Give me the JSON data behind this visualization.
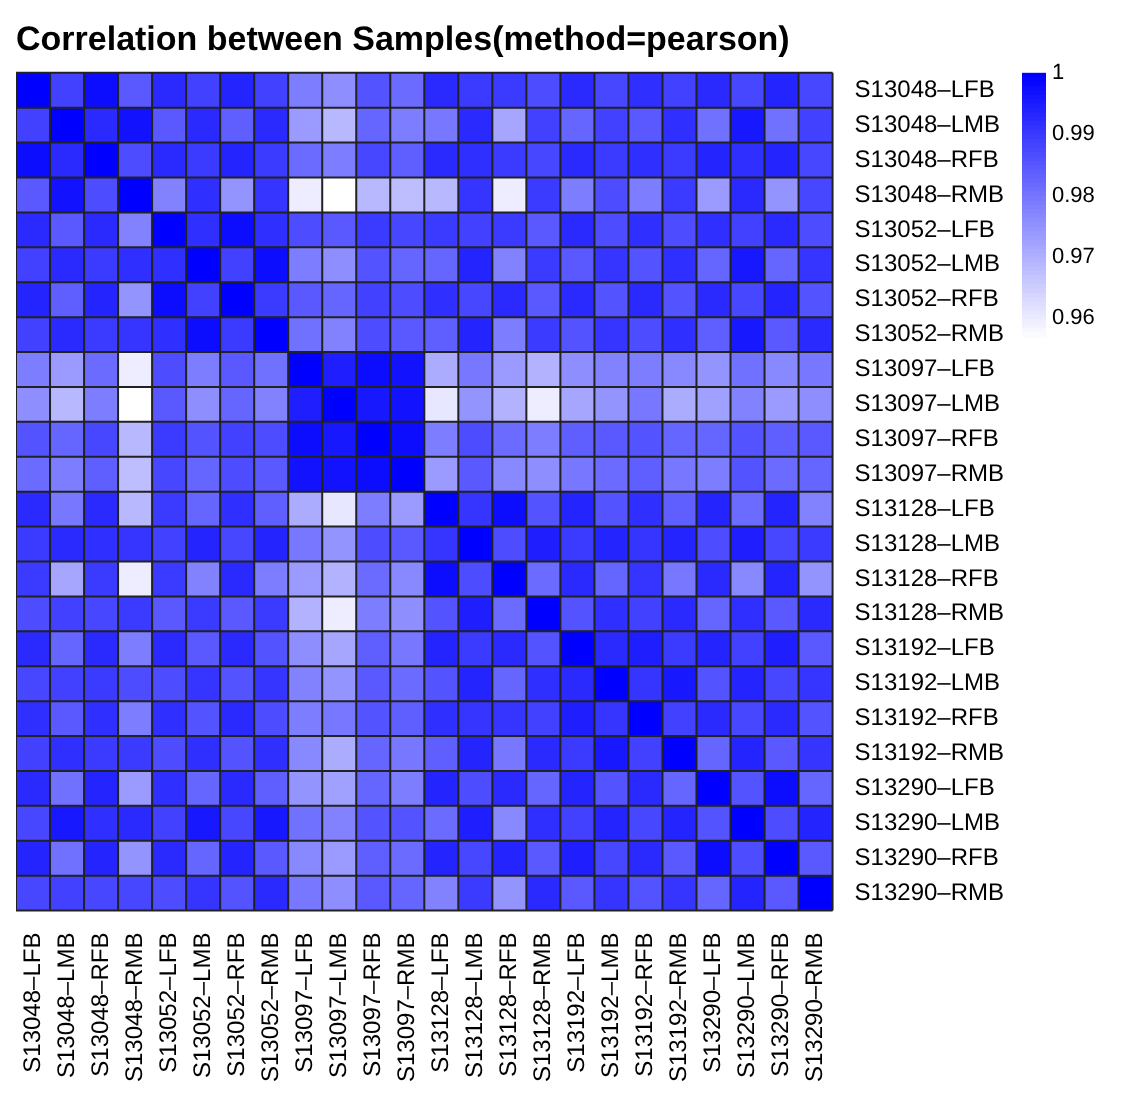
{
  "chart_data": {
    "type": "heatmap",
    "title": "Correlation between Samples(method=pearson)",
    "categories": [
      "S13048–LFB",
      "S13048–LMB",
      "S13048–RFB",
      "S13048–RMB",
      "S13052–LFB",
      "S13052–LMB",
      "S13052–RFB",
      "S13052–RMB",
      "S13097–LFB",
      "S13097–LMB",
      "S13097–RFB",
      "S13097–RMB",
      "S13128–LFB",
      "S13128–LMB",
      "S13128–RFB",
      "S13128–RMB",
      "S13192–LFB",
      "S13192–LMB",
      "S13192–RFB",
      "S13192–RMB",
      "S13290–LFB",
      "S13290–LMB",
      "S13290–RFB",
      "S13290–RMB"
    ],
    "y_categories": [
      "S13048–LFB",
      "S13048–LMB",
      "S13048–RFB",
      "S13048–RMB",
      "S13052–LFB",
      "S13052–LMB",
      "S13052–RFB",
      "S13052–RMB",
      "S13097–LFB",
      "S13097–LMB",
      "S13097–RFB",
      "S13097–RMB",
      "S13128–LFB",
      "S13128–LMB",
      "S13128–RFB",
      "S13128–RMB",
      "S13192–LFB",
      "S13192–LMB",
      "S13192–RFB",
      "S13192–RMB",
      "S13290–LFB",
      "S13290–LMB",
      "S13290–RFB",
      "S13290–RMB"
    ],
    "color": "#0000ff",
    "clim": [
      0.957,
      1
    ],
    "cticks": [
      {
        "value": 1,
        "label": "1"
      },
      0.99,
      0.98,
      0.97,
      0.96
    ],
    "cells": [
      [
        1,
        0.989,
        0.998,
        0.985,
        0.993,
        0.989,
        0.994,
        0.989,
        0.979,
        0.976,
        0.986,
        0.982,
        0.993,
        0.99,
        0.99,
        0.987,
        0.993,
        0.988,
        0.992,
        0.989,
        0.993,
        0.988,
        0.994,
        0.988
      ],
      [
        0.989,
        1,
        0.993,
        0.997,
        0.985,
        0.993,
        0.984,
        0.993,
        0.974,
        0.969,
        0.983,
        0.979,
        0.98,
        0.993,
        0.972,
        0.989,
        0.983,
        0.989,
        0.985,
        0.992,
        0.981,
        0.996,
        0.981,
        0.989
      ],
      [
        0.998,
        0.993,
        1,
        0.987,
        0.993,
        0.99,
        0.994,
        0.99,
        0.982,
        0.979,
        0.988,
        0.984,
        0.993,
        0.992,
        0.99,
        0.988,
        0.993,
        0.99,
        0.992,
        0.99,
        0.994,
        0.992,
        0.994,
        0.988
      ],
      [
        0.985,
        0.997,
        0.987,
        1,
        0.978,
        0.992,
        0.975,
        0.991,
        0.96,
        0.957,
        0.969,
        0.968,
        0.969,
        0.991,
        0.96,
        0.99,
        0.979,
        0.987,
        0.979,
        0.99,
        0.974,
        0.993,
        0.975,
        0.988
      ],
      [
        0.993,
        0.985,
        0.993,
        0.978,
        1,
        0.992,
        0.998,
        0.992,
        0.987,
        0.985,
        0.99,
        0.988,
        0.99,
        0.989,
        0.99,
        0.985,
        0.993,
        0.987,
        0.992,
        0.987,
        0.992,
        0.989,
        0.993,
        0.987
      ],
      [
        0.989,
        0.993,
        0.99,
        0.992,
        0.992,
        1,
        0.989,
        0.998,
        0.979,
        0.976,
        0.986,
        0.983,
        0.983,
        0.994,
        0.978,
        0.99,
        0.985,
        0.991,
        0.986,
        0.992,
        0.983,
        0.996,
        0.983,
        0.991
      ],
      [
        0.994,
        0.984,
        0.994,
        0.975,
        0.998,
        0.989,
        1,
        0.99,
        0.985,
        0.983,
        0.989,
        0.987,
        0.992,
        0.988,
        0.993,
        0.985,
        0.993,
        0.986,
        0.993,
        0.986,
        0.993,
        0.988,
        0.994,
        0.986
      ],
      [
        0.989,
        0.993,
        0.99,
        0.991,
        0.992,
        0.998,
        0.99,
        1,
        0.981,
        0.978,
        0.987,
        0.985,
        0.984,
        0.994,
        0.979,
        0.99,
        0.986,
        0.991,
        0.987,
        0.992,
        0.984,
        0.996,
        0.985,
        0.993
      ],
      [
        0.979,
        0.974,
        0.982,
        0.96,
        0.987,
        0.979,
        0.985,
        0.981,
        1,
        0.995,
        0.998,
        0.997,
        0.971,
        0.98,
        0.974,
        0.97,
        0.976,
        0.978,
        0.979,
        0.977,
        0.975,
        0.981,
        0.977,
        0.98
      ],
      [
        0.976,
        0.969,
        0.979,
        0.957,
        0.985,
        0.976,
        0.983,
        0.978,
        0.995,
        1,
        0.996,
        0.997,
        0.961,
        0.975,
        0.97,
        0.96,
        0.972,
        0.975,
        0.98,
        0.971,
        0.973,
        0.978,
        0.974,
        0.976
      ],
      [
        0.986,
        0.983,
        0.988,
        0.969,
        0.99,
        0.986,
        0.989,
        0.987,
        0.998,
        0.996,
        1,
        0.998,
        0.979,
        0.987,
        0.982,
        0.979,
        0.984,
        0.985,
        0.986,
        0.983,
        0.983,
        0.986,
        0.984,
        0.985
      ],
      [
        0.982,
        0.979,
        0.984,
        0.968,
        0.988,
        0.983,
        0.987,
        0.985,
        0.997,
        0.997,
        0.998,
        1,
        0.974,
        0.985,
        0.977,
        0.976,
        0.98,
        0.982,
        0.984,
        0.98,
        0.979,
        0.986,
        0.982,
        0.983
      ],
      [
        0.993,
        0.98,
        0.993,
        0.969,
        0.99,
        0.983,
        0.992,
        0.984,
        0.971,
        0.961,
        0.979,
        0.974,
        1,
        0.991,
        0.998,
        0.986,
        0.994,
        0.986,
        0.992,
        0.984,
        0.994,
        0.982,
        0.994,
        0.978
      ],
      [
        0.99,
        0.993,
        0.992,
        0.991,
        0.989,
        0.994,
        0.988,
        0.994,
        0.98,
        0.975,
        0.987,
        0.985,
        0.991,
        1,
        0.987,
        0.995,
        0.99,
        0.994,
        0.991,
        0.994,
        0.987,
        0.995,
        0.988,
        0.99
      ],
      [
        0.99,
        0.972,
        0.99,
        0.96,
        0.99,
        0.978,
        0.993,
        0.979,
        0.974,
        0.97,
        0.982,
        0.977,
        0.998,
        0.987,
        1,
        0.982,
        0.993,
        0.983,
        0.991,
        0.98,
        0.993,
        0.977,
        0.994,
        0.975
      ],
      [
        0.987,
        0.989,
        0.988,
        0.99,
        0.985,
        0.99,
        0.985,
        0.99,
        0.97,
        0.96,
        0.979,
        0.976,
        0.986,
        0.995,
        0.982,
        1,
        0.986,
        0.992,
        0.989,
        0.993,
        0.983,
        0.992,
        0.985,
        0.993
      ],
      [
        0.993,
        0.983,
        0.993,
        0.979,
        0.993,
        0.985,
        0.993,
        0.986,
        0.976,
        0.972,
        0.984,
        0.98,
        0.994,
        0.99,
        0.993,
        0.986,
        1,
        0.993,
        0.995,
        0.99,
        0.994,
        0.989,
        0.995,
        0.985
      ],
      [
        0.988,
        0.989,
        0.99,
        0.987,
        0.987,
        0.991,
        0.986,
        0.991,
        0.978,
        0.975,
        0.985,
        0.982,
        0.986,
        0.994,
        0.983,
        0.992,
        0.993,
        1,
        0.991,
        0.996,
        0.986,
        0.994,
        0.988,
        0.991
      ],
      [
        0.992,
        0.985,
        0.992,
        0.979,
        0.992,
        0.986,
        0.993,
        0.987,
        0.979,
        0.98,
        0.986,
        0.984,
        0.992,
        0.991,
        0.991,
        0.989,
        0.995,
        0.991,
        1,
        0.989,
        0.993,
        0.988,
        0.993,
        0.986
      ],
      [
        0.989,
        0.992,
        0.99,
        0.99,
        0.987,
        0.992,
        0.986,
        0.992,
        0.977,
        0.971,
        0.983,
        0.98,
        0.984,
        0.994,
        0.98,
        0.993,
        0.99,
        0.996,
        0.989,
        1,
        0.983,
        0.994,
        0.985,
        0.991
      ],
      [
        0.993,
        0.981,
        0.994,
        0.974,
        0.992,
        0.983,
        0.993,
        0.984,
        0.975,
        0.973,
        0.983,
        0.979,
        0.994,
        0.987,
        0.993,
        0.983,
        0.994,
        0.986,
        0.993,
        0.983,
        1,
        0.986,
        0.998,
        0.983
      ],
      [
        0.988,
        0.996,
        0.992,
        0.993,
        0.989,
        0.996,
        0.988,
        0.996,
        0.981,
        0.978,
        0.986,
        0.986,
        0.982,
        0.995,
        0.977,
        0.992,
        0.989,
        0.994,
        0.988,
        0.994,
        0.986,
        1,
        0.987,
        0.994
      ],
      [
        0.994,
        0.981,
        0.994,
        0.975,
        0.993,
        0.983,
        0.994,
        0.985,
        0.977,
        0.974,
        0.984,
        0.982,
        0.994,
        0.988,
        0.994,
        0.985,
        0.995,
        0.988,
        0.993,
        0.985,
        0.998,
        0.987,
        1,
        0.985
      ],
      [
        0.988,
        0.989,
        0.988,
        0.988,
        0.987,
        0.991,
        0.986,
        0.993,
        0.98,
        0.976,
        0.985,
        0.983,
        0.978,
        0.99,
        0.975,
        0.993,
        0.985,
        0.991,
        0.986,
        0.991,
        0.983,
        0.994,
        0.985,
        1
      ]
    ]
  }
}
